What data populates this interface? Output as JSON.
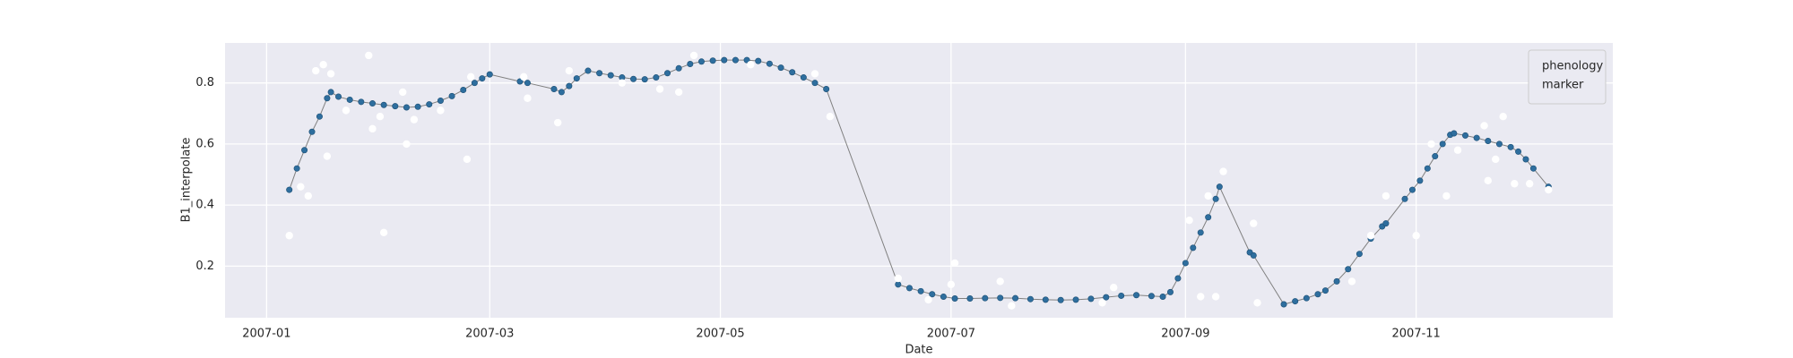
{
  "chart_data": {
    "type": "line",
    "x_label": "Date",
    "y_label": "B1_interpolate",
    "xlim": [
      "2006-12-21",
      "2007-12-23"
    ],
    "xticks": [
      {
        "value": "2007-01-01",
        "label": "2007-01"
      },
      {
        "value": "2007-03-01",
        "label": "2007-03"
      },
      {
        "value": "2007-05-01",
        "label": "2007-05"
      },
      {
        "value": "2007-07-01",
        "label": "2007-07"
      },
      {
        "value": "2007-09-01",
        "label": "2007-09"
      },
      {
        "value": "2007-11-01",
        "label": "2007-11"
      }
    ],
    "ylim": [
      0.031,
      0.931
    ],
    "yticks": [
      0.2,
      0.4,
      0.6,
      0.8
    ],
    "grid": true,
    "legend": "upper right",
    "series": [
      {
        "name": "phenology",
        "color": "#2e6e9e",
        "line_color": "#808080",
        "x": [
          "2007-01-07",
          "2007-01-09",
          "2007-01-11",
          "2007-01-13",
          "2007-01-15",
          "2007-01-17",
          "2007-01-18",
          "2007-01-20",
          "2007-01-23",
          "2007-01-26",
          "2007-01-29",
          "2007-02-01",
          "2007-02-04",
          "2007-02-07",
          "2007-02-10",
          "2007-02-13",
          "2007-02-16",
          "2007-02-19",
          "2007-02-22",
          "2007-02-25",
          "2007-02-27",
          "2007-03-01",
          "2007-03-09",
          "2007-03-11",
          "2007-03-18",
          "2007-03-20",
          "2007-03-22",
          "2007-03-24",
          "2007-03-27",
          "2007-03-30",
          "2007-04-02",
          "2007-04-05",
          "2007-04-08",
          "2007-04-11",
          "2007-04-14",
          "2007-04-17",
          "2007-04-20",
          "2007-04-23",
          "2007-04-26",
          "2007-04-29",
          "2007-05-02",
          "2007-05-05",
          "2007-05-08",
          "2007-05-11",
          "2007-05-14",
          "2007-05-17",
          "2007-05-20",
          "2007-05-23",
          "2007-05-26",
          "2007-05-29",
          "2007-06-17",
          "2007-06-20",
          "2007-06-23",
          "2007-06-26",
          "2007-06-29",
          "2007-07-02",
          "2007-07-06",
          "2007-07-10",
          "2007-07-14",
          "2007-07-18",
          "2007-07-22",
          "2007-07-26",
          "2007-07-30",
          "2007-08-03",
          "2007-08-07",
          "2007-08-11",
          "2007-08-15",
          "2007-08-19",
          "2007-08-23",
          "2007-08-26",
          "2007-08-28",
          "2007-08-30",
          "2007-09-01",
          "2007-09-03",
          "2007-09-05",
          "2007-09-07",
          "2007-09-09",
          "2007-09-10",
          "2007-09-18",
          "2007-09-19",
          "2007-09-27",
          "2007-09-30",
          "2007-10-03",
          "2007-10-06",
          "2007-10-08",
          "2007-10-11",
          "2007-10-14",
          "2007-10-17",
          "2007-10-20",
          "2007-10-23",
          "2007-10-24",
          "2007-10-29",
          "2007-10-31",
          "2007-11-02",
          "2007-11-04",
          "2007-11-06",
          "2007-11-08",
          "2007-11-10",
          "2007-11-11",
          "2007-11-14",
          "2007-11-17",
          "2007-11-20",
          "2007-11-23",
          "2007-11-26",
          "2007-11-28",
          "2007-11-30",
          "2007-12-02",
          "2007-12-06"
        ],
        "values": [
          0.45,
          0.52,
          0.58,
          0.64,
          0.69,
          0.75,
          0.77,
          0.755,
          0.745,
          0.738,
          0.733,
          0.728,
          0.724,
          0.72,
          0.722,
          0.73,
          0.742,
          0.757,
          0.777,
          0.8,
          0.815,
          0.828,
          0.805,
          0.8,
          0.78,
          0.77,
          0.79,
          0.815,
          0.84,
          0.832,
          0.825,
          0.818,
          0.813,
          0.812,
          0.818,
          0.832,
          0.848,
          0.862,
          0.87,
          0.873,
          0.875,
          0.875,
          0.875,
          0.872,
          0.863,
          0.85,
          0.835,
          0.818,
          0.8,
          0.78,
          0.14,
          0.128,
          0.118,
          0.108,
          0.1,
          0.094,
          0.094,
          0.095,
          0.096,
          0.095,
          0.092,
          0.09,
          0.089,
          0.09,
          0.093,
          0.098,
          0.103,
          0.105,
          0.102,
          0.1,
          0.115,
          0.16,
          0.21,
          0.26,
          0.31,
          0.36,
          0.42,
          0.46,
          0.245,
          0.235,
          0.075,
          0.085,
          0.095,
          0.108,
          0.12,
          0.15,
          0.19,
          0.24,
          0.29,
          0.33,
          0.34,
          0.42,
          0.45,
          0.48,
          0.52,
          0.56,
          0.6,
          0.63,
          0.635,
          0.628,
          0.62,
          0.61,
          0.6,
          0.59,
          0.575,
          0.55,
          0.52,
          0.46
        ]
      },
      {
        "name": "marker",
        "color": "#ffffff",
        "x": [
          "2007-01-07",
          "2007-01-10",
          "2007-01-12",
          "2007-01-14",
          "2007-01-16",
          "2007-01-17",
          "2007-01-18",
          "2007-01-22",
          "2007-01-28",
          "2007-01-29",
          "2007-01-31",
          "2007-02-01",
          "2007-02-06",
          "2007-02-07",
          "2007-02-09",
          "2007-02-16",
          "2007-02-23",
          "2007-02-24",
          "2007-03-10",
          "2007-03-11",
          "2007-03-19",
          "2007-03-22",
          "2007-04-05",
          "2007-04-15",
          "2007-04-20",
          "2007-04-24",
          "2007-05-09",
          "2007-05-26",
          "2007-05-30",
          "2007-06-17",
          "2007-06-25",
          "2007-07-01",
          "2007-07-02",
          "2007-07-14",
          "2007-07-17",
          "2007-08-10",
          "2007-08-13",
          "2007-09-02",
          "2007-09-05",
          "2007-09-07",
          "2007-09-09",
          "2007-09-11",
          "2007-09-19",
          "2007-09-20",
          "2007-10-15",
          "2007-10-20",
          "2007-10-24",
          "2007-11-01",
          "2007-11-05",
          "2007-11-09",
          "2007-11-12",
          "2007-11-19",
          "2007-11-20",
          "2007-11-22",
          "2007-11-24",
          "2007-11-27",
          "2007-12-01",
          "2007-12-06"
        ],
        "values": [
          0.3,
          0.46,
          0.43,
          0.84,
          0.86,
          0.56,
          0.83,
          0.71,
          0.89,
          0.65,
          0.69,
          0.31,
          0.77,
          0.6,
          0.68,
          0.71,
          0.55,
          0.82,
          0.82,
          0.75,
          0.67,
          0.84,
          0.8,
          0.78,
          0.77,
          0.89,
          0.86,
          0.83,
          0.69,
          0.16,
          0.09,
          0.14,
          0.21,
          0.15,
          0.07,
          0.08,
          0.13,
          0.35,
          0.1,
          0.43,
          0.1,
          0.51,
          0.34,
          0.08,
          0.15,
          0.3,
          0.43,
          0.3,
          0.6,
          0.43,
          0.58,
          0.66,
          0.48,
          0.55,
          0.69,
          0.47,
          0.47,
          0.45
        ]
      }
    ]
  }
}
